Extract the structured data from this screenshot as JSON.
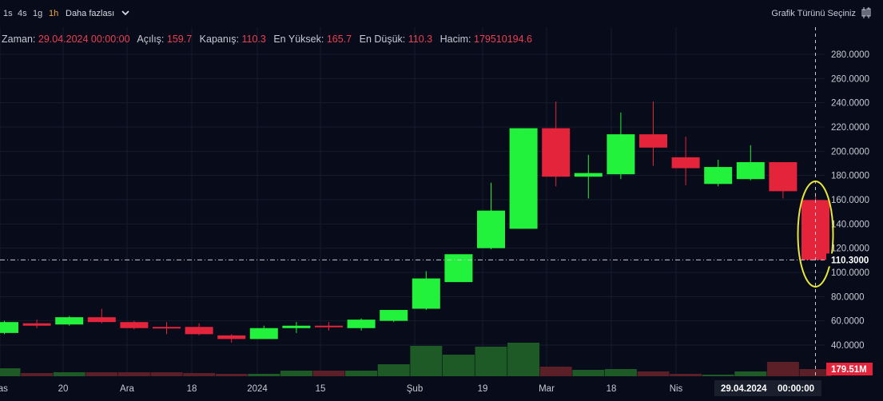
{
  "toolbar": {
    "timeframes": [
      {
        "label": "1s",
        "active": false
      },
      {
        "label": "4s",
        "active": false
      },
      {
        "label": "1g",
        "active": false
      },
      {
        "label": "1h",
        "active": true
      }
    ],
    "more_label": "Daha fazlası",
    "chart_type_label": "Grafik Türünü Seçiniz"
  },
  "legend": {
    "time_label": "Zaman:",
    "time_value": "29.04.2024 00:00:00",
    "open_label": "Açılış:",
    "open_value": "159.7",
    "close_label": "Kapanış:",
    "close_value": "110.3",
    "high_label": "En Yüksek:",
    "high_value": "165.7",
    "low_label": "En Düşük:",
    "low_value": "110.3",
    "volume_label": "Hacim:",
    "volume_value": "179510194.6"
  },
  "colors": {
    "up": "#22f23c",
    "down": "#e3243b",
    "background": "#070b1a",
    "grid": "#161c2c",
    "vol_up": "#1d5a25",
    "vol_down": "#5a1f27",
    "highlight_ellipse": "#e8e83a"
  },
  "chart_data": {
    "type": "candlestick",
    "interval": "weekly",
    "ylim": [
      25,
      295
    ],
    "y_ticks": [
      "280.0000",
      "260.0000",
      "240.0000",
      "220.0000",
      "200.0000",
      "180.0000",
      "160.0000",
      "140.0000",
      "120.0000",
      "100.0000",
      "80.0000",
      "60.0000",
      "40.0000"
    ],
    "x_tick_labels": [
      "Kas",
      "20",
      "Ara",
      "18",
      "2024",
      "15",
      "Şub",
      "19",
      "Mar",
      "18",
      "Nis"
    ],
    "crosshair_price_label": "110.3000",
    "crosshair_date_label": "29.04.2024",
    "crosshair_time_label": "00:00:00",
    "last_volume_label": "179.51M",
    "grid": true,
    "candles": [
      {
        "o": 50,
        "h": 60,
        "l": 49,
        "c": 59,
        "v": 10
      },
      {
        "o": 58,
        "h": 61,
        "l": 54,
        "c": 56,
        "v": 4
      },
      {
        "o": 57,
        "h": 64,
        "l": 56,
        "c": 63,
        "v": 5
      },
      {
        "o": 63,
        "h": 70,
        "l": 58,
        "c": 59,
        "v": 5
      },
      {
        "o": 59,
        "h": 60,
        "l": 53,
        "c": 54,
        "v": 5
      },
      {
        "o": 55,
        "h": 59,
        "l": 49,
        "c": 54,
        "v": 5
      },
      {
        "o": 55,
        "h": 58,
        "l": 48,
        "c": 49,
        "v": 4
      },
      {
        "o": 48,
        "h": 49,
        "l": 42,
        "c": 45,
        "v": 3
      },
      {
        "o": 45,
        "h": 56,
        "l": 45,
        "c": 54,
        "v": 3
      },
      {
        "o": 54,
        "h": 59,
        "l": 50,
        "c": 56,
        "v": 7
      },
      {
        "o": 56,
        "h": 59,
        "l": 52,
        "c": 55,
        "v": 7
      },
      {
        "o": 54,
        "h": 62,
        "l": 52,
        "c": 61,
        "v": 7
      },
      {
        "o": 60,
        "h": 69,
        "l": 59,
        "c": 69,
        "v": 15
      },
      {
        "o": 70,
        "h": 101,
        "l": 69,
        "c": 95,
        "v": 38
      },
      {
        "o": 92,
        "h": 115,
        "l": 92,
        "c": 115,
        "v": 27
      },
      {
        "o": 120,
        "h": 174,
        "l": 119,
        "c": 151,
        "v": 37
      },
      {
        "o": 136,
        "h": 219,
        "l": 136,
        "c": 219,
        "v": 42
      },
      {
        "o": 219,
        "h": 241,
        "l": 171,
        "c": 179,
        "v": 12
      },
      {
        "o": 179,
        "h": 197,
        "l": 161,
        "c": 182,
        "v": 8
      },
      {
        "o": 181,
        "h": 232,
        "l": 177,
        "c": 214,
        "v": 9
      },
      {
        "o": 214,
        "h": 241,
        "l": 188,
        "c": 203,
        "v": 6
      },
      {
        "o": 195,
        "h": 212,
        "l": 172,
        "c": 186,
        "v": 3
      },
      {
        "o": 173,
        "h": 193,
        "l": 171,
        "c": 187,
        "v": 2
      },
      {
        "o": 177,
        "h": 205,
        "l": 176,
        "c": 191,
        "v": 6
      },
      {
        "o": 191,
        "h": 191,
        "l": 161,
        "c": 167,
        "v": 18
      },
      {
        "o": 159.7,
        "h": 165.7,
        "l": 110.3,
        "c": 110.3,
        "v": 9
      }
    ]
  }
}
